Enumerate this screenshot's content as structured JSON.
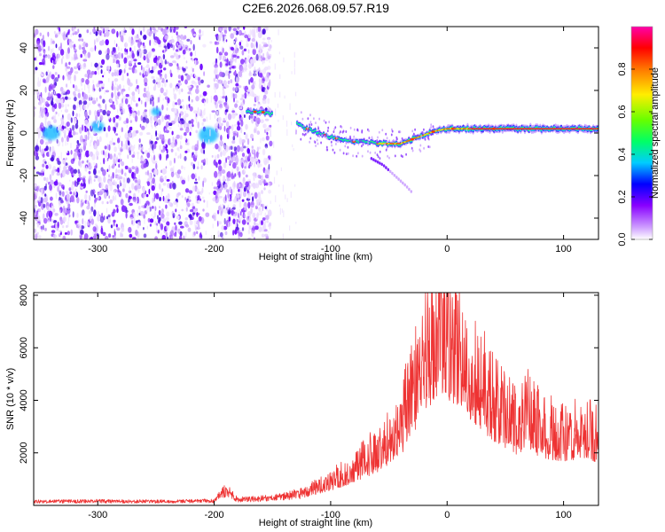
{
  "title": "C2E6.2026.068.09.57.R19",
  "chart_data": [
    {
      "type": "heatmap",
      "title": "C2E6.2026.068.09.57.R19",
      "xlabel": "Height of straight line (km)",
      "ylabel": "Frequency (Hz)",
      "xlim": [
        -355,
        130
      ],
      "ylim": [
        -50,
        50
      ],
      "xticks": [
        -300,
        -200,
        -100,
        0,
        100
      ],
      "yticks": [
        -40,
        -20,
        0,
        20,
        40
      ],
      "colorbar": {
        "label": "Normalized spectral amplitude",
        "range": [
          0.0,
          1.0
        ],
        "ticks": [
          "0.0",
          "0.2",
          "0.4",
          "0.6",
          "0.8"
        ],
        "colors": [
          "#ffffff",
          "#cc99ff",
          "#8800ff",
          "#0000ff",
          "#00ccff",
          "#00ff66",
          "#66ff00",
          "#ffee00",
          "#ff7700",
          "#ff0000",
          "#ff00aa"
        ]
      },
      "noise_region_km": [
        -355,
        -135
      ],
      "noise_gaps_km": [
        [
          -208,
          -200
        ],
        [
          -150,
          -147
        ]
      ],
      "ridge": {
        "x": [
          -172,
          -160,
          -150,
          -140,
          -125,
          -110,
          -100,
          -90,
          -80,
          -70,
          -60,
          -50,
          -40,
          -30,
          -20,
          -10,
          0,
          20,
          40,
          60,
          80,
          90,
          100,
          130
        ],
        "y": [
          10,
          10,
          9,
          8,
          3,
          0,
          -2,
          -3,
          -4,
          -4,
          -5,
          -5,
          -5,
          -3,
          -1,
          1,
          2,
          2,
          2,
          2,
          2,
          2,
          2,
          2
        ]
      },
      "secondary_branch": {
        "x": [
          -65,
          -55,
          -45,
          -35,
          -30
        ],
        "y": [
          -12,
          -15,
          -20,
          -25,
          -28
        ]
      }
    },
    {
      "type": "line",
      "xlabel": "Height of straight line (km)",
      "ylabel": "SNR (10 * v/v)",
      "xlim": [
        -355,
        130
      ],
      "ylim": [
        0,
        8100
      ],
      "xticks": [
        -300,
        -200,
        -100,
        0,
        100
      ],
      "yticks": [
        2000,
        4000,
        6000,
        8000
      ],
      "series": [
        {
          "name": "SNR",
          "color": "#ee3333",
          "x": [
            -355,
            -300,
            -250,
            -200,
            -190,
            -180,
            -150,
            -120,
            -100,
            -80,
            -60,
            -40,
            -30,
            -20,
            -10,
            -5,
            0,
            10,
            20,
            30,
            40,
            60,
            70,
            80,
            100,
            120,
            130
          ],
          "y": [
            150,
            160,
            150,
            170,
            600,
            220,
            280,
            500,
            850,
            1300,
            1900,
            2800,
            4000,
            5100,
            6200,
            6400,
            6100,
            5500,
            4900,
            4300,
            3600,
            2900,
            3300,
            2700,
            2500,
            2700,
            2400
          ]
        }
      ]
    }
  ]
}
